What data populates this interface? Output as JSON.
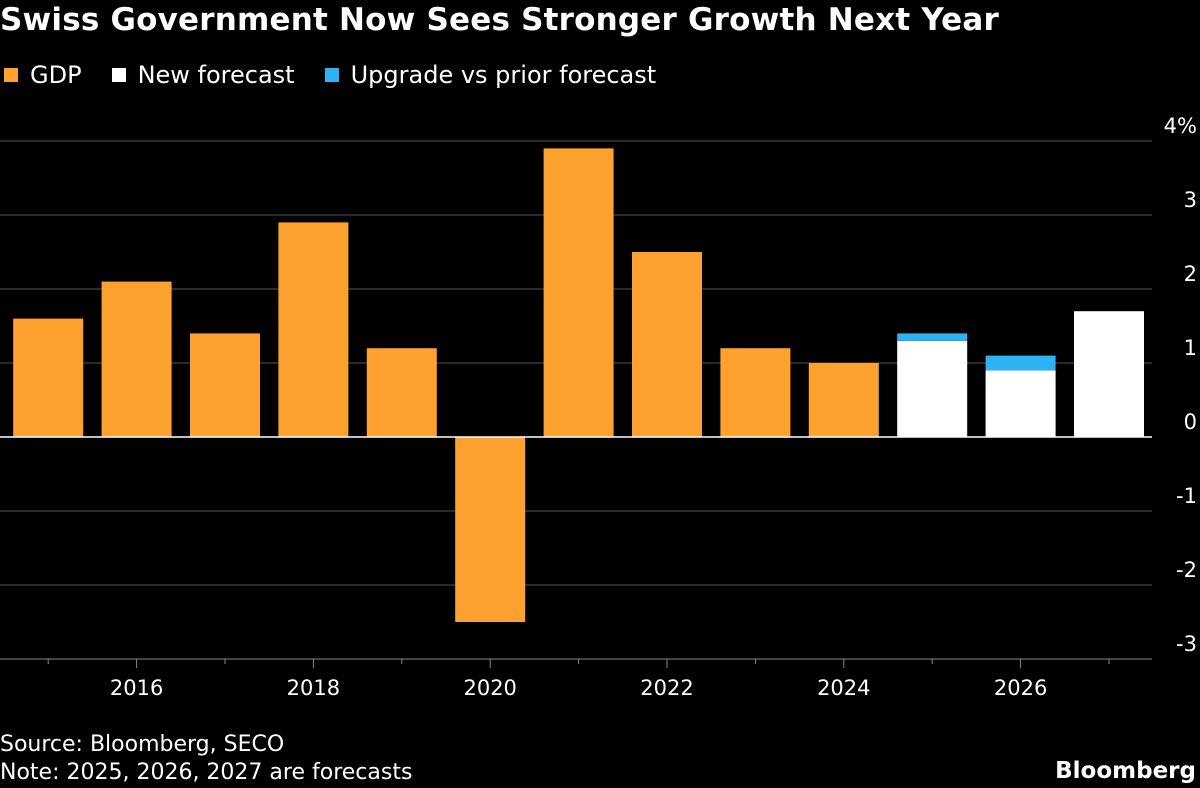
{
  "title": "Swiss Government Now Sees Stronger Growth Next Year",
  "colors": {
    "gdp": "#FFA12E",
    "forecast": "#FFFFFF",
    "upgrade": "#2BB3F3",
    "grid": "#555555",
    "background": "#000000"
  },
  "legend": [
    {
      "label": "GDP",
      "color_key": "gdp"
    },
    {
      "label": "New forecast",
      "color_key": "forecast"
    },
    {
      "label": "Upgrade vs prior forecast",
      "color_key": "upgrade"
    }
  ],
  "chart_data": {
    "type": "bar",
    "title": "Swiss Government Now Sees Stronger Growth Next Year",
    "categories": [
      "2015",
      "2016",
      "2017",
      "2018",
      "2019",
      "2020",
      "2021",
      "2022",
      "2023",
      "2024",
      "2025",
      "2026",
      "2027"
    ],
    "series": [
      {
        "name": "GDP",
        "values": [
          1.6,
          2.1,
          1.4,
          2.9,
          1.2,
          -2.5,
          3.9,
          2.5,
          1.2,
          1.0,
          null,
          null,
          null
        ]
      },
      {
        "name": "New forecast",
        "values": [
          null,
          null,
          null,
          null,
          null,
          null,
          null,
          null,
          null,
          null,
          1.3,
          0.9,
          1.7
        ]
      },
      {
        "name": "Upgrade vs prior forecast",
        "values": [
          null,
          null,
          null,
          null,
          null,
          null,
          null,
          null,
          null,
          null,
          0.1,
          0.2,
          null
        ]
      }
    ],
    "ylim": [
      -3,
      4
    ],
    "y_ticks": [
      4,
      3,
      2,
      1,
      0,
      -1,
      -2,
      -3
    ],
    "y_tick_labels": [
      "4%",
      "3",
      "2",
      "1",
      "0",
      "-1",
      "-2",
      "-3"
    ],
    "x_tick_labels": [
      "2016",
      "2018",
      "2020",
      "2022",
      "2024",
      "2026"
    ],
    "stacked": true,
    "grid": true,
    "legend_position": "top-left",
    "xlabel": "",
    "ylabel": ""
  },
  "footer": {
    "source": "Source: Bloomberg, SECO",
    "note": "Note: 2025, 2026, 2027 are forecasts",
    "brand": "Bloomberg"
  }
}
